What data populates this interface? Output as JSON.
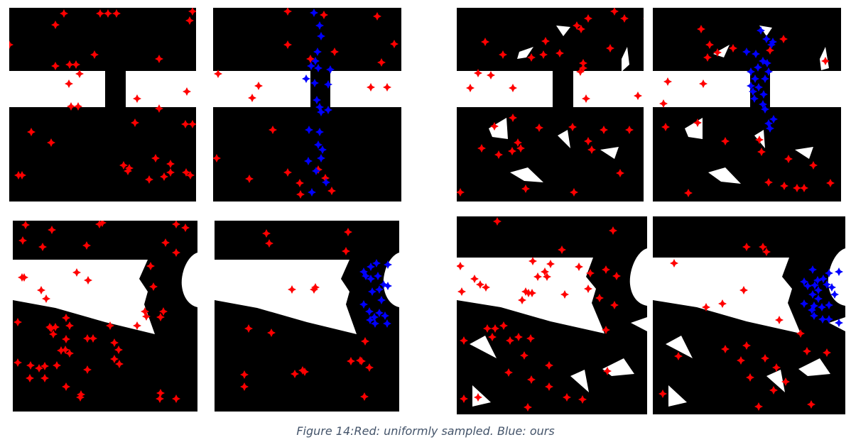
{
  "figure": {
    "caption": "Figure 14:Red: uniformly sampled. Blue: ours"
  },
  "colors": {
    "background": "#000000",
    "obstacle": "#ffffff",
    "uniform_sample": "#ff0000",
    "our_sample": "#0000ff",
    "caption_text": "#44546a"
  },
  "panels": [
    {
      "scene": "narrow-passage",
      "sampling": "uniform"
    },
    {
      "scene": "narrow-passage",
      "sampling": "ours"
    },
    {
      "scene": "narrow-passage-with-clutter",
      "sampling": "uniform"
    },
    {
      "scene": "narrow-passage-with-clutter",
      "sampling": "ours"
    },
    {
      "scene": "wedge-gap",
      "sampling": "uniform"
    },
    {
      "scene": "wedge-gap",
      "sampling": "ours"
    },
    {
      "scene": "wedge-gap-with-clutter",
      "sampling": "uniform"
    },
    {
      "scene": "wedge-gap-with-clutter",
      "sampling": "ours"
    }
  ]
}
